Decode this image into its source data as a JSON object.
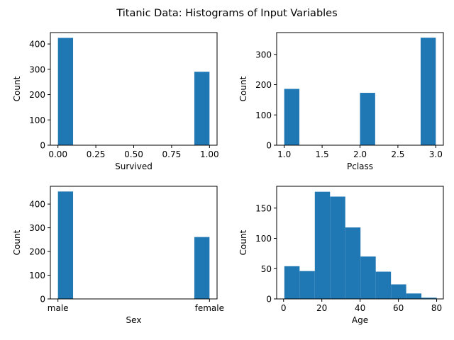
{
  "figure": {
    "title": "Titanic Data: Histograms of Input Variables"
  },
  "chart_data": [
    {
      "type": "bar",
      "subtype": "histogram",
      "xlabel": "Survived",
      "ylabel": "Count",
      "xlim": [
        -0.05,
        1.05
      ],
      "ylim": [
        0,
        445
      ],
      "xticks": [
        0.0,
        0.25,
        0.5,
        0.75,
        1.0
      ],
      "xtick_labels": [
        "0.00",
        "0.25",
        "0.50",
        "0.75",
        "1.00"
      ],
      "yticks": [
        0,
        100,
        200,
        300,
        400
      ],
      "bins": [
        [
          0.0,
          0.1
        ],
        [
          0.9,
          1.0
        ]
      ],
      "values": [
        424,
        290
      ],
      "color": "#1f77b4"
    },
    {
      "type": "bar",
      "subtype": "histogram",
      "xlabel": "Pclass",
      "ylabel": "Count",
      "xlim": [
        0.9,
        3.1
      ],
      "ylim": [
        0,
        372
      ],
      "xticks": [
        1.0,
        1.5,
        2.0,
        2.5,
        3.0
      ],
      "xtick_labels": [
        "1.0",
        "1.5",
        "2.0",
        "2.5",
        "3.0"
      ],
      "yticks": [
        0,
        100,
        200,
        300
      ],
      "bins": [
        [
          1.0,
          1.2
        ],
        [
          2.0,
          2.2
        ],
        [
          2.8,
          3.0
        ]
      ],
      "values": [
        186,
        173,
        355
      ],
      "color": "#1f77b4"
    },
    {
      "type": "bar",
      "subtype": "histogram",
      "xlabel": "Sex",
      "ylabel": "Count",
      "xlim": [
        -0.05,
        1.05
      ],
      "ylim": [
        0,
        475
      ],
      "xticks": [
        0,
        1
      ],
      "xtick_labels": [
        "male",
        "female"
      ],
      "yticks": [
        0,
        100,
        200,
        300,
        400
      ],
      "bins": [
        [
          0.0,
          0.1
        ],
        [
          0.9,
          1.0
        ]
      ],
      "values": [
        453,
        261
      ],
      "color": "#1f77b4"
    },
    {
      "type": "bar",
      "subtype": "histogram",
      "xlabel": "Age",
      "ylabel": "Count",
      "xlim": [
        -3.6,
        83.5
      ],
      "ylim": [
        0,
        186
      ],
      "xticks": [
        0,
        20,
        40,
        60,
        80
      ],
      "xtick_labels": [
        "0",
        "20",
        "40",
        "60",
        "80"
      ],
      "yticks": [
        0,
        50,
        100,
        150
      ],
      "bins": [
        [
          0.42,
          8.38
        ],
        [
          8.38,
          16.34
        ],
        [
          16.34,
          24.29
        ],
        [
          24.29,
          32.25
        ],
        [
          32.25,
          40.21
        ],
        [
          40.21,
          48.17
        ],
        [
          48.17,
          56.13
        ],
        [
          56.13,
          64.08
        ],
        [
          64.08,
          72.04
        ],
        [
          72.04,
          80.0
        ]
      ],
      "values": [
        54,
        46,
        177,
        169,
        118,
        70,
        45,
        24,
        9,
        2
      ],
      "color": "#1f77b4"
    }
  ]
}
